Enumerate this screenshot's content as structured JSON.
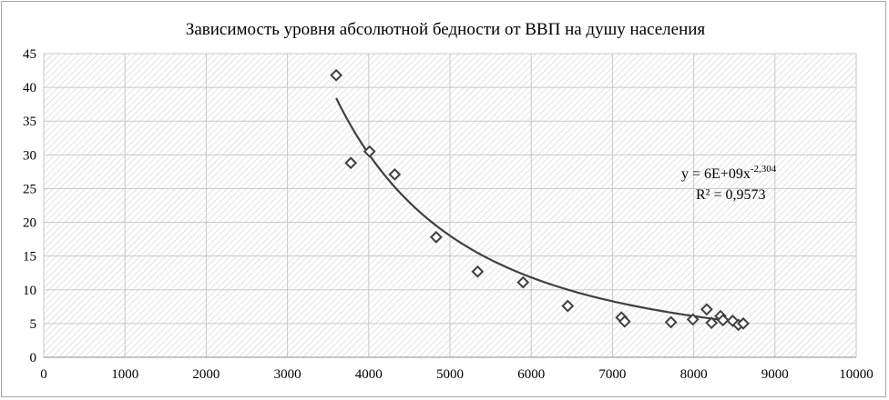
{
  "chart_data": {
    "type": "scatter",
    "title": "Зависимость уровня абсолютной бедности от ВВП  на душу населения",
    "xlabel": "",
    "ylabel": "",
    "xlim": [
      0,
      10000
    ],
    "ylim": [
      0,
      45
    ],
    "x_ticks": [
      0,
      1000,
      2000,
      3000,
      4000,
      5000,
      6000,
      7000,
      8000,
      9000,
      10000
    ],
    "y_ticks": [
      0,
      5,
      10,
      15,
      20,
      25,
      30,
      35,
      40,
      45
    ],
    "grid": true,
    "legend": "none",
    "marker": "diamond",
    "points": [
      {
        "x": 3600,
        "y": 41.8
      },
      {
        "x": 3780,
        "y": 28.8
      },
      {
        "x": 4010,
        "y": 30.5
      },
      {
        "x": 4320,
        "y": 27.1
      },
      {
        "x": 4830,
        "y": 17.8
      },
      {
        "x": 5340,
        "y": 12.7
      },
      {
        "x": 5900,
        "y": 11.1
      },
      {
        "x": 6450,
        "y": 7.6
      },
      {
        "x": 7110,
        "y": 5.9
      },
      {
        "x": 7150,
        "y": 5.3
      },
      {
        "x": 7720,
        "y": 5.2
      },
      {
        "x": 7990,
        "y": 5.6
      },
      {
        "x": 8160,
        "y": 7.1
      },
      {
        "x": 8220,
        "y": 5.1
      },
      {
        "x": 8330,
        "y": 6.1
      },
      {
        "x": 8360,
        "y": 5.5
      },
      {
        "x": 8480,
        "y": 5.4
      },
      {
        "x": 8550,
        "y": 4.8
      },
      {
        "x": 8610,
        "y": 5.0
      }
    ],
    "trendline": {
      "type": "power",
      "coefficient": 6000000000,
      "exponent": -2.304,
      "x_range": [
        3600,
        8640
      ],
      "equation_text": "y = 6E+09x",
      "equation_exponent": "-2,304",
      "r2_text": "R² = 0,9573"
    }
  },
  "colors": {
    "marker": "#404040",
    "trendline": "#404040",
    "grid": "#c8c8c8",
    "hatch": "#c9c9c9",
    "border": "#a6a6a6"
  }
}
